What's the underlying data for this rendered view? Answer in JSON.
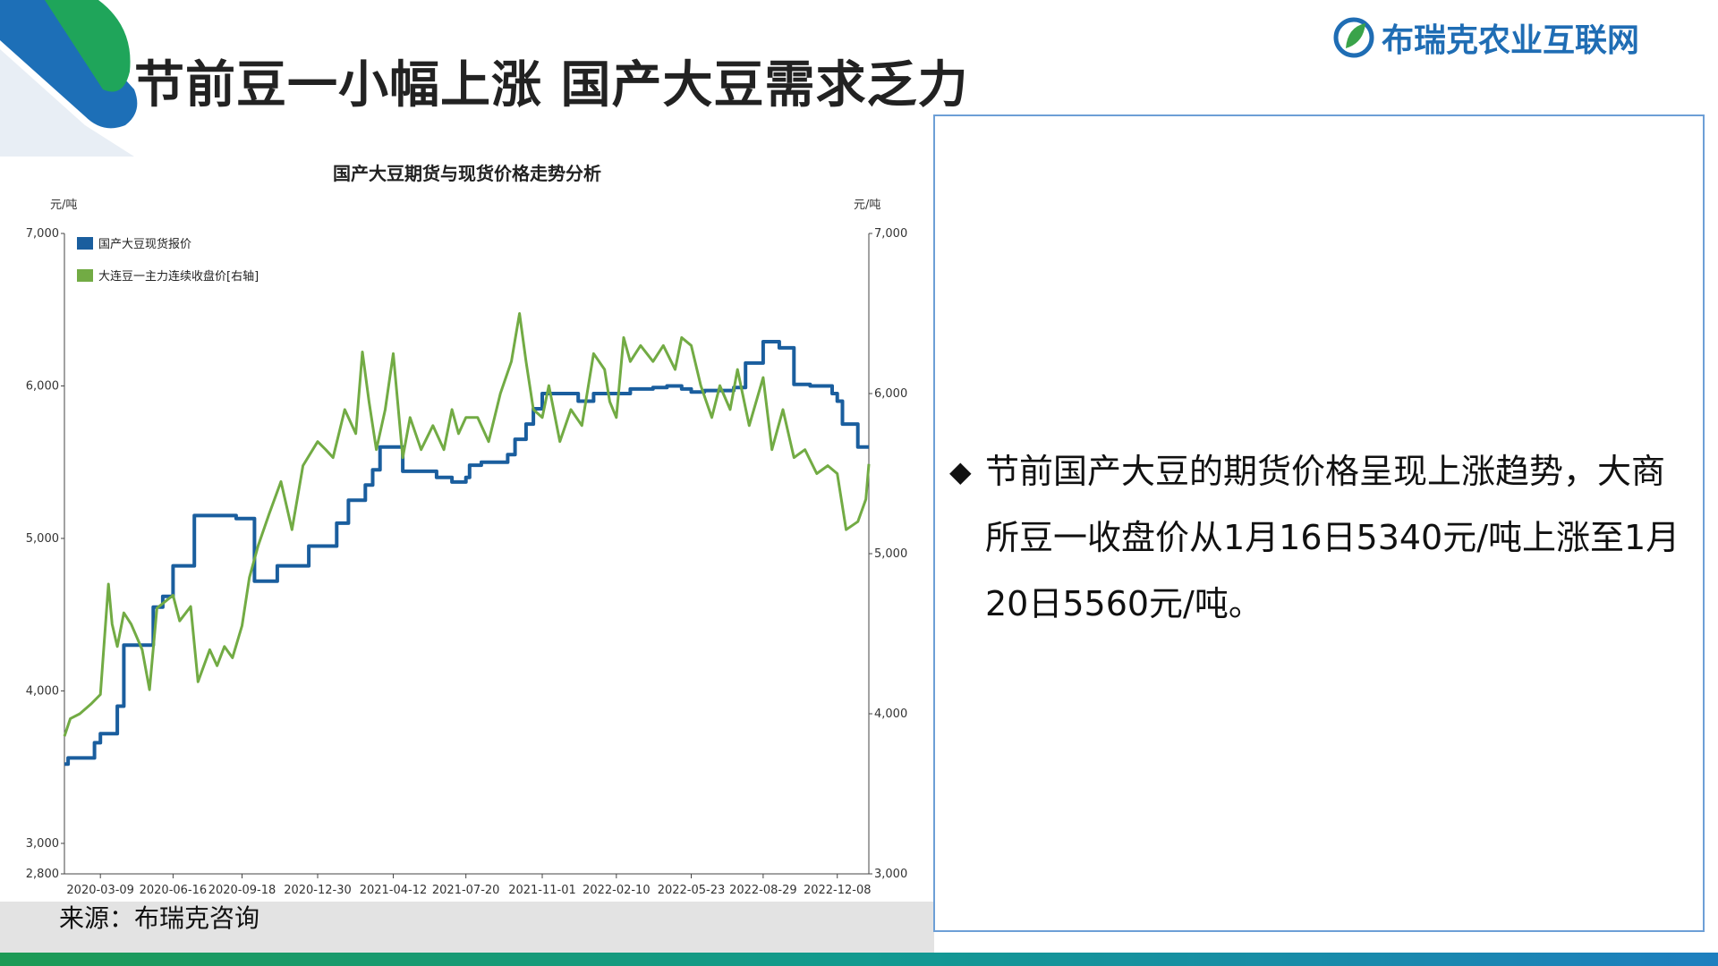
{
  "slide_title": "节前豆一小幅上涨 国产大豆需求乏力",
  "logo_text": "布瑞克农业互联网",
  "source_text": "来源：布瑞克咨询",
  "body_text": "节前国产大豆的期货价格呈现上涨趋势，大商所豆一收盘价从1月16日5340元/吨上涨至1月20日5560元/吨。",
  "colors": {
    "spot": "#1a5e9e",
    "futures": "#72ab44",
    "box_border": "#6d9fd6"
  },
  "chart_data": {
    "type": "line",
    "title": "国产大豆期货与现货价格走势分析",
    "y_left_unit": "元/吨",
    "y_right_unit": "元/吨",
    "y_left_ticks": [
      "7,000",
      "6,000",
      "5,000",
      "4,000",
      "3,000",
      "2,800"
    ],
    "y_right_ticks": [
      "7,000",
      "6,000",
      "5,000",
      "4,000",
      "3,000"
    ],
    "ylim_left": [
      2800,
      7000
    ],
    "ylim_right": [
      3000,
      7000
    ],
    "x_tick_labels": [
      "2020-03-09",
      "2020-06-16",
      "2020-09-18",
      "2020-12-30",
      "2021-04-12",
      "2021-07-20",
      "2021-11-01",
      "2022-02-10",
      "2022-05-23",
      "2022-08-29",
      "2022-12-08"
    ],
    "x_range": [
      "2020-01-20",
      "2023-01-20"
    ],
    "legend_position": "top-left",
    "series": [
      {
        "name": "国产大豆现货报价",
        "axis": "left",
        "color": "#1a5e9e",
        "x": [
          "2020-01-20",
          "2020-01-25",
          "2020-02-25",
          "2020-03-01",
          "2020-03-09",
          "2020-03-25",
          "2020-04-01",
          "2020-04-10",
          "2020-05-20",
          "2020-05-28",
          "2020-06-02",
          "2020-06-16",
          "2020-07-15",
          "2020-08-10",
          "2020-09-10",
          "2020-09-14",
          "2020-10-05",
          "2020-10-20",
          "2020-11-05",
          "2020-11-20",
          "2020-12-18",
          "2020-12-30",
          "2021-01-25",
          "2021-02-10",
          "2021-03-05",
          "2021-03-15",
          "2021-03-25",
          "2021-04-12",
          "2021-04-25",
          "2021-05-20",
          "2021-06-10",
          "2021-07-01",
          "2021-07-20",
          "2021-07-25",
          "2021-08-10",
          "2021-09-05",
          "2021-09-15",
          "2021-09-25",
          "2021-10-10",
          "2021-10-20",
          "2021-11-01",
          "2021-11-15",
          "2021-12-05",
          "2021-12-20",
          "2022-01-10",
          "2022-02-10",
          "2022-03-01",
          "2022-04-01",
          "2022-04-20",
          "2022-05-10",
          "2022-05-23",
          "2022-06-10",
          "2022-07-01",
          "2022-07-20",
          "2022-08-05",
          "2022-08-29",
          "2022-09-10",
          "2022-09-20",
          "2022-10-10",
          "2022-11-01",
          "2022-11-15",
          "2022-12-01",
          "2022-12-08",
          "2022-12-15",
          "2023-01-05",
          "2023-01-20"
        ],
        "y": [
          3520,
          3560,
          3560,
          3660,
          3720,
          3720,
          3900,
          4300,
          4550,
          4550,
          4620,
          4820,
          5150,
          5150,
          5130,
          5130,
          4720,
          4720,
          4820,
          4820,
          4950,
          4950,
          5100,
          5250,
          5350,
          5450,
          5600,
          5600,
          5440,
          5440,
          5400,
          5370,
          5400,
          5480,
          5500,
          5500,
          5550,
          5650,
          5750,
          5850,
          5950,
          5950,
          5950,
          5900,
          5950,
          5950,
          5980,
          5990,
          6000,
          5980,
          5960,
          5970,
          5970,
          5990,
          6150,
          6290,
          6290,
          6250,
          6010,
          6000,
          6000,
          5950,
          5900,
          5750,
          5600,
          5600
        ]
      },
      {
        "name": "大连豆一主力连续收盘价[右轴]",
        "axis": "right",
        "color": "#72ab44",
        "x": [
          "2020-01-20",
          "2020-01-28",
          "2020-02-10",
          "2020-02-25",
          "2020-03-09",
          "2020-03-20",
          "2020-03-25",
          "2020-04-01",
          "2020-04-10",
          "2020-04-20",
          "2020-05-05",
          "2020-05-15",
          "2020-05-25",
          "2020-06-05",
          "2020-06-16",
          "2020-06-25",
          "2020-07-10",
          "2020-07-20",
          "2020-08-05",
          "2020-08-15",
          "2020-08-25",
          "2020-09-05",
          "2020-09-18",
          "2020-09-28",
          "2020-10-10",
          "2020-10-25",
          "2020-11-10",
          "2020-11-25",
          "2020-12-10",
          "2020-12-30",
          "2021-01-10",
          "2021-01-20",
          "2021-02-05",
          "2021-02-20",
          "2021-03-01",
          "2021-03-10",
          "2021-03-20",
          "2021-04-01",
          "2021-04-12",
          "2021-04-25",
          "2021-05-05",
          "2021-05-20",
          "2021-06-05",
          "2021-06-20",
          "2021-07-01",
          "2021-07-10",
          "2021-07-20",
          "2021-08-05",
          "2021-08-20",
          "2021-09-05",
          "2021-09-20",
          "2021-10-01",
          "2021-10-10",
          "2021-10-20",
          "2021-11-01",
          "2021-11-10",
          "2021-11-25",
          "2021-12-10",
          "2021-12-25",
          "2022-01-10",
          "2022-01-25",
          "2022-02-01",
          "2022-02-10",
          "2022-02-20",
          "2022-03-01",
          "2022-03-15",
          "2022-04-01",
          "2022-04-15",
          "2022-05-01",
          "2022-05-10",
          "2022-05-23",
          "2022-06-05",
          "2022-06-20",
          "2022-07-01",
          "2022-07-15",
          "2022-07-25",
          "2022-08-10",
          "2022-08-29",
          "2022-09-10",
          "2022-09-25",
          "2022-10-10",
          "2022-10-25",
          "2022-11-10",
          "2022-11-25",
          "2022-12-08",
          "2022-12-20",
          "2023-01-05",
          "2023-01-16",
          "2023-01-20"
        ],
        "y": [
          3860,
          3970,
          4000,
          4060,
          4120,
          4810,
          4560,
          4420,
          4630,
          4560,
          4400,
          4150,
          4660,
          4700,
          4740,
          4580,
          4670,
          4200,
          4400,
          4300,
          4420,
          4350,
          4550,
          4850,
          5050,
          5250,
          5450,
          5150,
          5550,
          5700,
          5650,
          5600,
          5900,
          5750,
          6260,
          5950,
          5650,
          5900,
          6250,
          5600,
          5850,
          5650,
          5800,
          5650,
          5900,
          5750,
          5850,
          5850,
          5700,
          6000,
          6200,
          6500,
          6200,
          5900,
          5850,
          6050,
          5700,
          5900,
          5800,
          6250,
          6150,
          5950,
          5850,
          6350,
          6200,
          6300,
          6200,
          6300,
          6150,
          6350,
          6300,
          6050,
          5850,
          6050,
          5900,
          6150,
          5800,
          6100,
          5650,
          5900,
          5600,
          5650,
          5500,
          5550,
          5500,
          5150,
          5200,
          5340,
          5560
        ]
      }
    ]
  }
}
